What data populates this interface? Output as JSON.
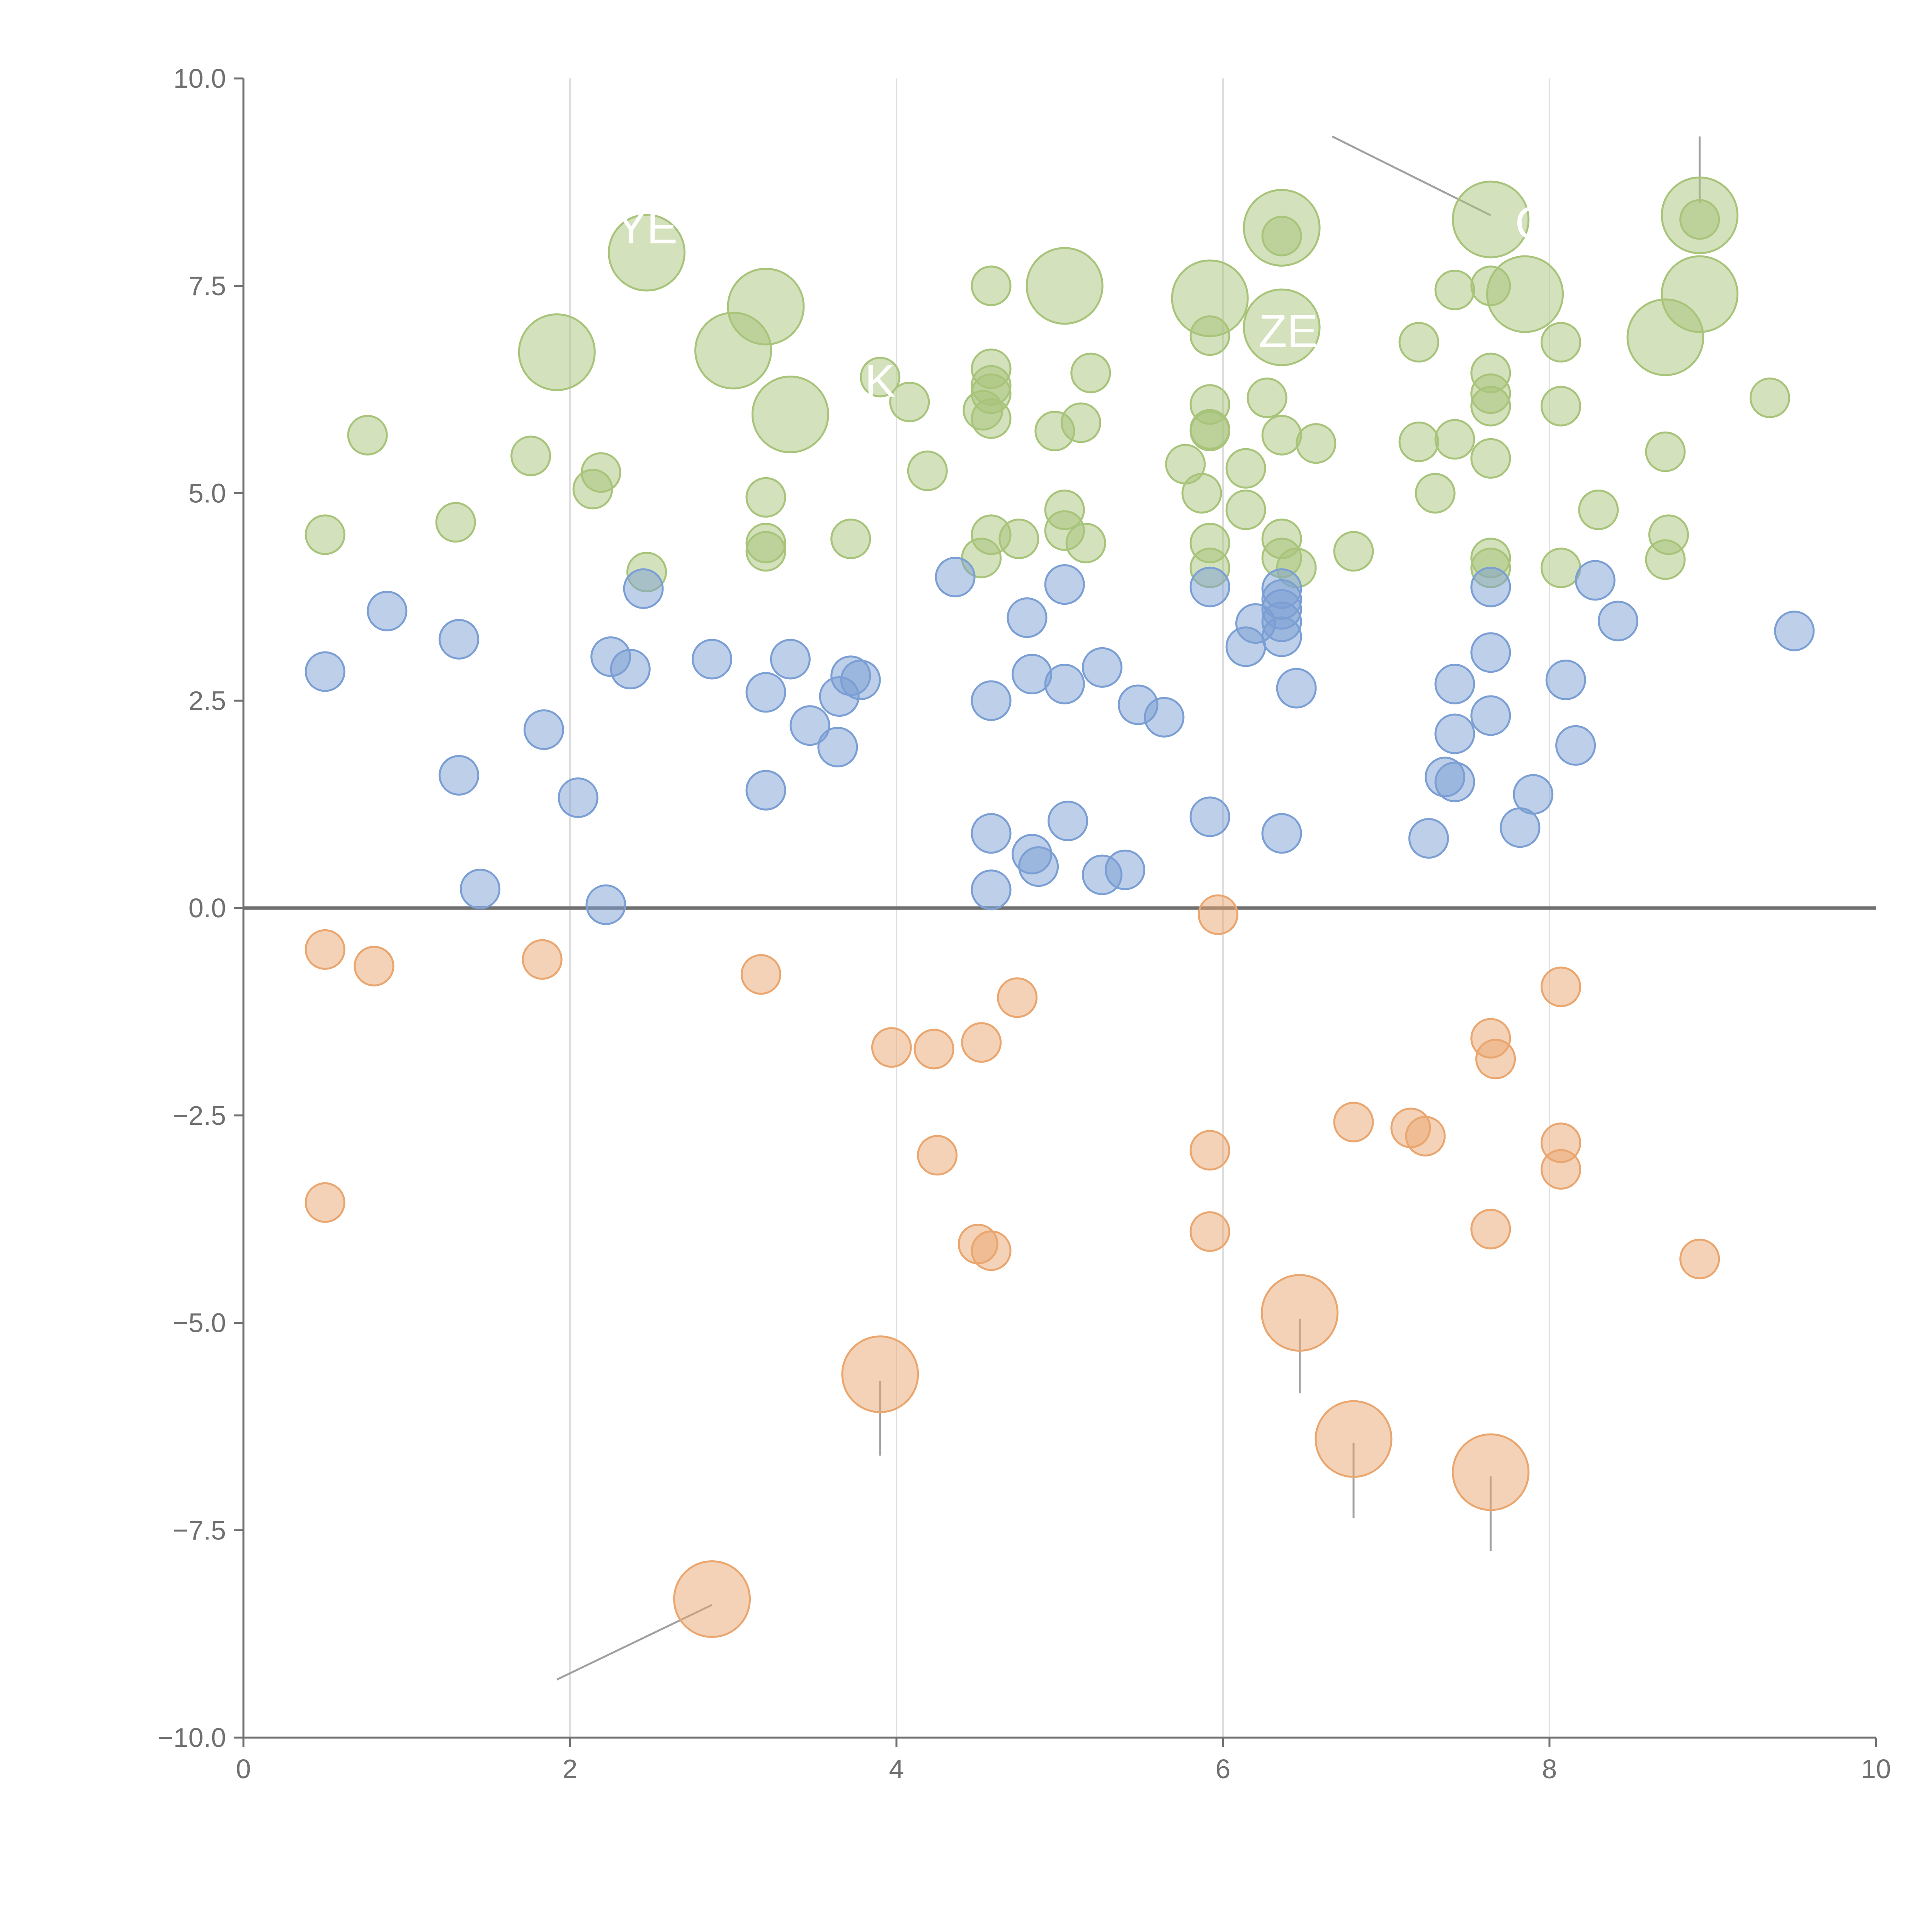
{
  "chart_data": {
    "type": "scatter",
    "title": "",
    "xlabel": "",
    "ylabel": "",
    "xlim": [
      0,
      10
    ],
    "ylim": [
      -10,
      10
    ],
    "x_ticks": [
      "0",
      "2",
      "4",
      "6",
      "8",
      "10"
    ],
    "y_ticks": [
      "10.0",
      "7.5",
      "5.0",
      "2.5",
      "0.0",
      "−2.5",
      "−5.0",
      "−7.5",
      "−10.0"
    ],
    "grid": "vertical",
    "baseline": 0,
    "colors": {
      "green": "#a8c47a",
      "blue": "#7b9fd4",
      "orange": "#eaa66f"
    },
    "series": [
      {
        "name": "green",
        "points": [
          [
            0.5,
            4.5
          ],
          [
            0.76,
            5.7
          ],
          [
            1.3,
            4.65
          ],
          [
            1.76,
            5.45
          ],
          [
            2.14,
            5.05
          ],
          [
            2.19,
            5.25
          ],
          [
            2.47,
            4.05
          ],
          [
            3.2,
            4.95
          ],
          [
            3.2,
            4.4
          ],
          [
            3.2,
            4.3
          ],
          [
            3.72,
            4.45
          ],
          [
            3.9,
            6.4
          ],
          [
            4.08,
            6.1
          ],
          [
            4.19,
            5.27
          ],
          [
            4.52,
            4.22
          ],
          [
            4.58,
            4.5
          ],
          [
            4.58,
            7.5
          ],
          [
            4.58,
            6.5
          ],
          [
            4.58,
            6.2
          ],
          [
            4.58,
            5.9
          ],
          [
            4.53,
            6.0
          ],
          [
            4.58,
            6.3
          ],
          [
            4.75,
            4.45
          ],
          [
            4.97,
            5.75
          ],
          [
            5.03,
            4.8
          ],
          [
            5.03,
            4.55
          ],
          [
            5.13,
            5.85
          ],
          [
            5.16,
            4.4
          ],
          [
            5.19,
            6.45
          ],
          [
            5.77,
            5.35
          ],
          [
            5.87,
            5.0
          ],
          [
            5.92,
            6.9
          ],
          [
            5.92,
            6.07
          ],
          [
            5.92,
            5.77
          ],
          [
            5.92,
            5.75
          ],
          [
            5.92,
            4.4
          ],
          [
            5.92,
            4.1
          ],
          [
            6.14,
            5.3
          ],
          [
            6.14,
            4.8
          ],
          [
            6.27,
            6.15
          ],
          [
            6.36,
            8.1
          ],
          [
            6.36,
            5.7
          ],
          [
            6.36,
            4.45
          ],
          [
            6.36,
            4.22
          ],
          [
            6.45,
            4.1
          ],
          [
            6.57,
            5.6
          ],
          [
            6.8,
            4.3
          ],
          [
            7.2,
            6.82
          ],
          [
            7.2,
            5.62
          ],
          [
            7.3,
            5.0
          ],
          [
            7.42,
            7.45
          ],
          [
            7.42,
            5.65
          ],
          [
            7.64,
            7.5
          ],
          [
            7.64,
            6.45
          ],
          [
            7.64,
            6.2
          ],
          [
            7.64,
            6.05
          ],
          [
            7.64,
            5.42
          ],
          [
            7.64,
            4.22
          ],
          [
            7.64,
            4.1
          ],
          [
            8.07,
            6.82
          ],
          [
            8.07,
            6.05
          ],
          [
            8.07,
            4.1
          ],
          [
            8.3,
            4.8
          ],
          [
            8.71,
            5.5
          ],
          [
            8.73,
            4.5
          ],
          [
            8.71,
            4.2
          ],
          [
            8.92,
            8.3
          ],
          [
            9.35,
            6.15
          ]
        ],
        "large": [
          [
            1.92,
            6.7
          ],
          [
            2.47,
            7.9
          ],
          [
            3.0,
            6.72
          ],
          [
            3.2,
            7.25
          ],
          [
            3.35,
            5.95
          ],
          [
            5.03,
            7.5
          ],
          [
            5.92,
            7.35
          ],
          [
            6.36,
            8.2
          ],
          [
            6.36,
            7.0
          ],
          [
            7.64,
            8.3
          ],
          [
            7.85,
            7.4
          ],
          [
            8.71,
            6.88
          ],
          [
            8.92,
            7.4
          ],
          [
            8.92,
            8.35
          ]
        ]
      },
      {
        "name": "blue",
        "points": [
          [
            0.5,
            2.85
          ],
          [
            0.88,
            3.58
          ],
          [
            1.32,
            3.24
          ],
          [
            1.32,
            1.6
          ],
          [
            1.45,
            0.23
          ],
          [
            1.84,
            2.15
          ],
          [
            2.05,
            1.33
          ],
          [
            2.22,
            0.04
          ],
          [
            2.25,
            3.03
          ],
          [
            2.37,
            2.88
          ],
          [
            2.45,
            3.85
          ],
          [
            2.87,
            3.0
          ],
          [
            3.2,
            2.6
          ],
          [
            3.2,
            1.42
          ],
          [
            3.35,
            3.0
          ],
          [
            3.47,
            2.2
          ],
          [
            3.64,
            1.94
          ],
          [
            3.65,
            2.55
          ],
          [
            3.72,
            2.8
          ],
          [
            3.78,
            2.75
          ],
          [
            4.36,
            3.99
          ],
          [
            4.58,
            2.5
          ],
          [
            4.58,
            0.9
          ],
          [
            4.58,
            0.22
          ],
          [
            4.8,
            3.5
          ],
          [
            4.83,
            2.82
          ],
          [
            4.83,
            0.65
          ],
          [
            4.87,
            0.5
          ],
          [
            5.03,
            3.9
          ],
          [
            5.03,
            2.7
          ],
          [
            5.05,
            1.05
          ],
          [
            5.26,
            2.9
          ],
          [
            5.26,
            0.4
          ],
          [
            5.4,
            0.46
          ],
          [
            5.48,
            2.45
          ],
          [
            5.64,
            2.3
          ],
          [
            5.92,
            3.87
          ],
          [
            5.92,
            1.1
          ],
          [
            6.14,
            3.15
          ],
          [
            6.2,
            3.43
          ],
          [
            6.36,
            3.85
          ],
          [
            6.36,
            3.72
          ],
          [
            6.36,
            3.6
          ],
          [
            6.36,
            3.45
          ],
          [
            6.36,
            3.27
          ],
          [
            6.36,
            0.9
          ],
          [
            6.45,
            2.65
          ],
          [
            7.26,
            0.84
          ],
          [
            7.36,
            1.58
          ],
          [
            7.42,
            2.7
          ],
          [
            7.42,
            2.1
          ],
          [
            7.42,
            1.52
          ],
          [
            7.64,
            3.87
          ],
          [
            7.64,
            3.08
          ],
          [
            7.64,
            2.32
          ],
          [
            7.82,
            0.97
          ],
          [
            7.9,
            1.37
          ],
          [
            8.1,
            2.75
          ],
          [
            8.16,
            1.96
          ],
          [
            8.28,
            3.95
          ],
          [
            8.42,
            3.46
          ],
          [
            9.5,
            3.34
          ]
        ]
      },
      {
        "name": "orange",
        "points": [
          [
            0.5,
            -0.5
          ],
          [
            0.8,
            -0.7
          ],
          [
            1.83,
            -0.62
          ],
          [
            3.17,
            -0.8
          ],
          [
            3.97,
            -1.68
          ],
          [
            4.23,
            -1.7
          ],
          [
            4.25,
            -2.98
          ],
          [
            4.52,
            -1.62
          ],
          [
            4.5,
            -4.05
          ],
          [
            4.58,
            -4.13
          ],
          [
            4.74,
            -1.08
          ],
          [
            5.97,
            -0.08
          ],
          [
            5.92,
            -2.92
          ],
          [
            5.92,
            -3.9
          ],
          [
            6.8,
            -2.58
          ],
          [
            7.15,
            -2.65
          ],
          [
            7.24,
            -2.75
          ],
          [
            7.64,
            -1.57
          ],
          [
            7.67,
            -1.82
          ],
          [
            7.64,
            -3.87
          ],
          [
            8.07,
            -0.95
          ],
          [
            8.07,
            -2.83
          ],
          [
            8.07,
            -3.15
          ],
          [
            8.92,
            -4.23
          ],
          [
            0.5,
            -3.55
          ]
        ],
        "large": [
          [
            2.87,
            -8.33
          ],
          [
            3.9,
            -5.62
          ],
          [
            6.47,
            -4.88
          ],
          [
            6.8,
            -6.4
          ],
          [
            7.64,
            -6.8
          ]
        ]
      }
    ],
    "annotations": [
      {
        "text": "YE",
        "x": 2.47,
        "y": 8.2
      },
      {
        "text": "K",
        "x": 3.9,
        "y": 6.35
      },
      {
        "text": "ZE",
        "x": 6.4,
        "y": 6.95
      },
      {
        "text": "Q",
        "x": 7.9,
        "y": 8.25
      }
    ],
    "leader_lines": [
      {
        "x1": 6.67,
        "y1": 9.3,
        "x2": 7.64,
        "y2": 8.35
      },
      {
        "x1": 8.92,
        "y1": 9.3,
        "x2": 8.92,
        "y2": 8.5
      },
      {
        "x1": 1.92,
        "y1": -9.3,
        "x2": 2.87,
        "y2": -8.4
      },
      {
        "x1": 3.9,
        "y1": -5.7,
        "x2": 3.9,
        "y2": -6.6
      },
      {
        "x1": 6.47,
        "y1": -4.95,
        "x2": 6.47,
        "y2": -5.85
      },
      {
        "x1": 6.8,
        "y1": -6.45,
        "x2": 6.8,
        "y2": -7.35
      },
      {
        "x1": 7.64,
        "y1": -6.85,
        "x2": 7.64,
        "y2": -7.75
      }
    ]
  }
}
